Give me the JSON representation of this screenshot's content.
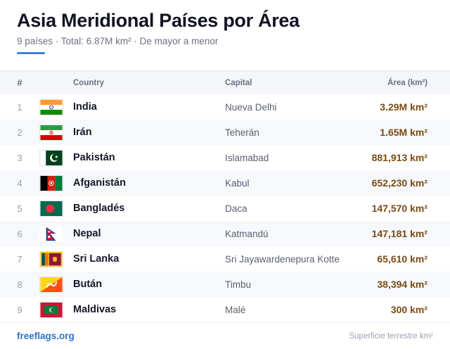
{
  "header": {
    "title": "Asia Meridional Países por Área",
    "subtitle": "9 países · Total: 6.87M km² · De mayor a menor"
  },
  "table": {
    "columns": {
      "num": "#",
      "country": "Country",
      "capital": "Capital",
      "area": "Área (km²)"
    },
    "rows": [
      {
        "num": "1",
        "country": "India",
        "capital": "Nueva Delhi",
        "area": "3.29M km²",
        "flag": "india-flag-icon"
      },
      {
        "num": "2",
        "country": "Irán",
        "capital": "Teherán",
        "area": "1.65M km²",
        "flag": "iran-flag-icon"
      },
      {
        "num": "3",
        "country": "Pakistán",
        "capital": "Islamabad",
        "area": "881,913 km²",
        "flag": "pakistan-flag-icon"
      },
      {
        "num": "4",
        "country": "Afganistán",
        "capital": "Kabul",
        "area": "652,230 km²",
        "flag": "afghanistan-flag-icon"
      },
      {
        "num": "5",
        "country": "Bangladés",
        "capital": "Daca",
        "area": "147,570 km²",
        "flag": "bangladesh-flag-icon"
      },
      {
        "num": "6",
        "country": "Nepal",
        "capital": "Katmandú",
        "area": "147,181 km²",
        "flag": "nepal-flag-icon"
      },
      {
        "num": "7",
        "country": "Sri Lanka",
        "capital": "Sri Jayawardenepura Kotte",
        "area": "65,610 km²",
        "flag": "sri-lanka-flag-icon"
      },
      {
        "num": "8",
        "country": "Bután",
        "capital": "Timbu",
        "area": "38,394 km²",
        "flag": "bhutan-flag-icon"
      },
      {
        "num": "9",
        "country": "Maldivas",
        "capital": "Malé",
        "area": "300 km²",
        "flag": "maldives-flag-icon"
      }
    ]
  },
  "footer": {
    "brand": "freeflags.org",
    "note": "Superficie terrestre km²"
  },
  "colors": {
    "accent": "#3b82d6",
    "area_text": "#7a4a12",
    "brand": "#2f73c9"
  }
}
